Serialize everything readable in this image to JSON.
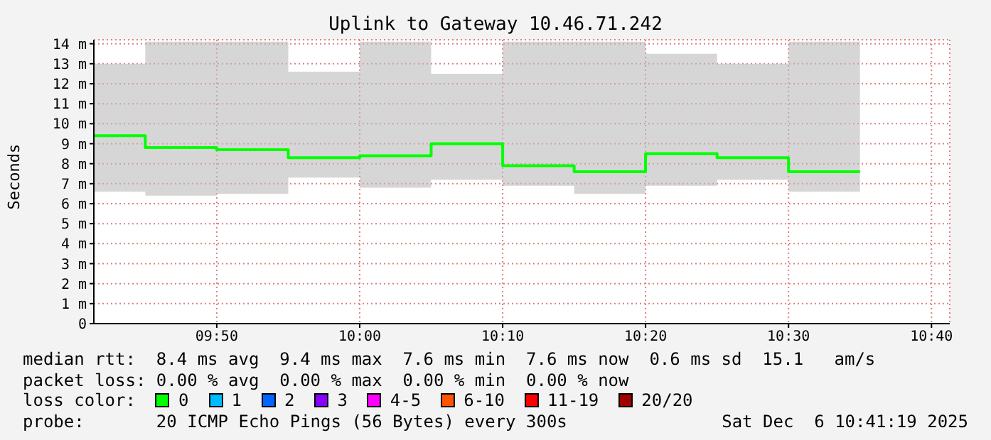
{
  "chart_data": {
    "type": "step",
    "title": "Uplink to Gateway 10.46.71.242",
    "ylabel": "Seconds",
    "x": [
      9.69,
      9.75,
      9.8333,
      9.9167,
      10,
      10.0833,
      10.1667,
      10.25,
      10.3333,
      10.4167,
      10.5,
      10.5833
    ],
    "series": [
      {
        "color": "#00ff00",
        "values": [
          9.4,
          8.8,
          8.7,
          8.3,
          8.4,
          9.0,
          7.9,
          7.6,
          8.5,
          8.3,
          7.6,
          7.6
        ],
        "lower": [
          6.6,
          6.4,
          6.5,
          7.3,
          6.8,
          7.2,
          6.9,
          6.5,
          6.9,
          7.2,
          6.6,
          6.6
        ],
        "upper": [
          13.0,
          14.1,
          14.1,
          12.6,
          14.1,
          12.5,
          14.1,
          14.1,
          13.5,
          13.0,
          14.1,
          14.1
        ]
      }
    ],
    "xlim": [
      9.69,
      10.688
    ],
    "xticks": [
      {
        "value": 9.8333,
        "label": "09:50"
      },
      {
        "value": 10,
        "label": "10:00"
      },
      {
        "value": 10.1667,
        "label": "10:10"
      },
      {
        "value": 10.3333,
        "label": "10:20"
      },
      {
        "value": 10.5,
        "label": "10:30"
      },
      {
        "value": 10.6667,
        "label": "10:40"
      }
    ],
    "ylim": [
      0,
      14.2
    ],
    "yticks": [
      0,
      {
        "value": 1,
        "label": "1 m"
      },
      {
        "value": 2,
        "label": "2 m"
      },
      {
        "value": 3,
        "label": "3 m"
      },
      {
        "value": 4,
        "label": "4 m"
      },
      {
        "value": 5,
        "label": "5 m"
      },
      {
        "value": 6,
        "label": "6 m"
      },
      {
        "value": 7,
        "label": "7 m"
      },
      {
        "value": 8,
        "label": "8 m"
      },
      {
        "value": 9,
        "label": "9 m"
      },
      {
        "value": 10,
        "label": "10 m"
      },
      {
        "value": 11,
        "label": "11 m"
      },
      {
        "value": 12,
        "label": "12 m"
      },
      {
        "value": 13,
        "label": "13 m"
      },
      {
        "value": 14,
        "label": "14 m"
      }
    ],
    "grid": true,
    "annotations": [
      "median rtt:  8.4 ms avg  9.4 ms max  7.6 ms min  7.6 ms now  0.6 ms sd  15.1   am/s",
      "packet loss: 0.00 % avg  0.00 % max  0.00 % min  0.00 % now",
      "loss color:",
      "0",
      "1",
      "2",
      "3",
      "4-5",
      "6-10",
      "11-19",
      "20/20",
      "probe:       20 ICMP Echo Pings (56 Bytes) every 300s",
      "Sat Dec  6 10:41:19 2025"
    ]
  }
}
